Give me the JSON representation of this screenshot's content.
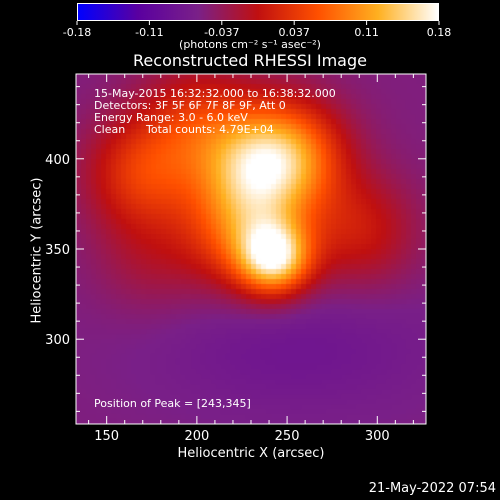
{
  "chart_data": {
    "type": "heatmap",
    "title": "Reconstructed RHESSI Image",
    "xlabel": "Heliocentric X (arcsec)",
    "ylabel": "Heliocentric Y (arcsec)",
    "xlim": [
      133,
      327
    ],
    "ylim": [
      253,
      447
    ],
    "xticks": [
      150,
      200,
      250,
      300
    ],
    "yticks": [
      300,
      350,
      400
    ],
    "colorbar": {
      "range": [
        -0.18,
        0.18
      ],
      "ticks": [
        "-0.18",
        "-0.11",
        "-0.037",
        "0.037",
        "0.11",
        "0.18"
      ],
      "label": "(photons cm⁻² s⁻¹ asec⁻²)",
      "colors": [
        "#0000ff",
        "#5a00a0",
        "#7a2088",
        "#c01010",
        "#ff5000",
        "#ffb020",
        "#ffffff"
      ]
    },
    "annotations": {
      "time": "15-May-2015 16:32:32.000 to 16:38:32.000",
      "detectors": "Detectors: 3F 5F 6F 7F 8F 9F, Att 0",
      "energy": "Energy Range: 3.0 - 6.0 keV",
      "clean": "Clean",
      "counts": "Total counts: 4.79E+04",
      "peak": "Position of Peak = [243,345]"
    },
    "peak": [
      243,
      345
    ],
    "emission_blobs": [
      {
        "x": 243,
        "y": 345,
        "peak": 0.18
      },
      {
        "x": 225,
        "y": 360,
        "peak": 0.1
      },
      {
        "x": 232,
        "y": 395,
        "peak": 0.12
      },
      {
        "x": 252,
        "y": 402,
        "peak": 0.11
      },
      {
        "x": 170,
        "y": 392,
        "peak": 0.085
      },
      {
        "x": 200,
        "y": 420,
        "peak": 0.07
      },
      {
        "x": 290,
        "y": 360,
        "peak": 0.06
      },
      {
        "x": 175,
        "y": 345,
        "peak": 0.03
      }
    ],
    "background_level": -0.055,
    "low_region": {
      "x": 255,
      "y": 295,
      "depth": -0.07
    },
    "footer_date": "21-May-2022 07:54"
  }
}
